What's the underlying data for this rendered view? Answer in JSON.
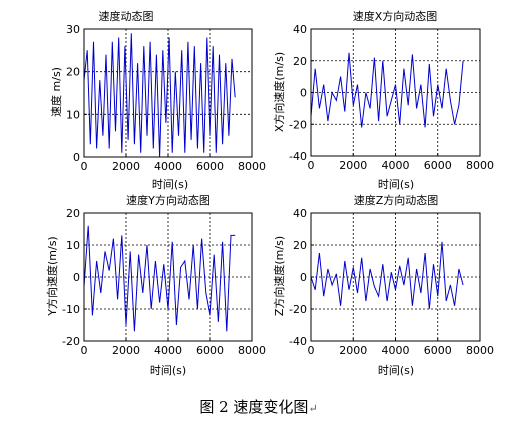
{
  "figure": {
    "caption": "图 2  速度变化图",
    "caption_mark": "↵"
  },
  "chart_data": [
    {
      "type": "line",
      "title": "速度动态图",
      "xlabel": "时间(s)",
      "ylabel": "速度 m/s)",
      "xlim": [
        0,
        8000
      ],
      "ylim": [
        0,
        30
      ],
      "xticks": [
        0,
        2000,
        4000,
        6000,
        8000
      ],
      "yticks": [
        0,
        10,
        20,
        30
      ],
      "grid": true,
      "color": "#0000cc",
      "series": [
        {
          "x": [
            0,
            150,
            300,
            450,
            600,
            750,
            900,
            1050,
            1200,
            1350,
            1500,
            1650,
            1800,
            1950,
            2100,
            2250,
            2400,
            2550,
            2700,
            2850,
            3000,
            3150,
            3300,
            3450,
            3600,
            3750,
            3900,
            4050,
            4200,
            4350,
            4500,
            4650,
            4800,
            4950,
            5100,
            5250,
            5400,
            5550,
            5700,
            5850,
            6000,
            6150,
            6300,
            6450,
            6600,
            6750,
            6900,
            7050,
            7200
          ],
          "values": [
            18,
            25,
            3,
            27,
            2,
            18,
            5,
            24,
            2,
            27,
            6,
            28,
            1,
            26,
            4,
            29,
            3,
            22,
            1,
            26,
            5,
            27,
            2,
            24,
            0,
            25,
            8,
            28,
            1,
            20,
            5,
            25,
            1,
            27,
            4,
            26,
            2,
            22,
            1,
            28,
            5,
            26,
            1,
            24,
            3,
            22,
            5,
            23,
            14
          ]
        }
      ]
    },
    {
      "type": "line",
      "title": "速度X方向动态图",
      "xlabel": "时间(s)",
      "ylabel": "X方向速度(m/s)",
      "xlim": [
        0,
        8000
      ],
      "ylim": [
        -40,
        40
      ],
      "xticks": [
        0,
        2000,
        4000,
        6000,
        8000
      ],
      "yticks": [
        -40,
        -20,
        0,
        20,
        40
      ],
      "grid": true,
      "color": "#0000cc",
      "series": [
        {
          "x": [
            0,
            200,
            400,
            600,
            800,
            1000,
            1200,
            1400,
            1600,
            1800,
            2000,
            2200,
            2400,
            2600,
            2800,
            3000,
            3200,
            3400,
            3600,
            3800,
            4000,
            4200,
            4400,
            4600,
            4800,
            5000,
            5200,
            5400,
            5600,
            5800,
            6000,
            6200,
            6400,
            6600,
            6800,
            7000,
            7200
          ],
          "values": [
            -15,
            15,
            -10,
            5,
            -18,
            0,
            -5,
            10,
            -12,
            25,
            -8,
            5,
            -22,
            0,
            -10,
            22,
            -18,
            20,
            -15,
            -5,
            5,
            -20,
            15,
            -8,
            24,
            -10,
            5,
            -22,
            18,
            -15,
            5,
            -10,
            15,
            -5,
            -20,
            -8,
            20
          ]
        }
      ]
    },
    {
      "type": "line",
      "title": "速度Y方向动态图",
      "xlabel": "时间(s)",
      "ylabel": "Y方向速度(m/s)",
      "xlim": [
        0,
        8000
      ],
      "ylim": [
        -20,
        20
      ],
      "xticks": [
        0,
        2000,
        4000,
        6000,
        8000
      ],
      "yticks": [
        -20,
        -10,
        0,
        10,
        20
      ],
      "grid": true,
      "color": "#0000cc",
      "series": [
        {
          "x": [
            0,
            200,
            400,
            600,
            800,
            1000,
            1200,
            1400,
            1600,
            1800,
            2000,
            2200,
            2400,
            2600,
            2800,
            3000,
            3200,
            3400,
            3600,
            3800,
            4000,
            4200,
            4400,
            4600,
            4800,
            5000,
            5200,
            5400,
            5600,
            5800,
            6000,
            6200,
            6400,
            6600,
            6800,
            7000,
            7200
          ],
          "values": [
            -3,
            16,
            -12,
            5,
            -5,
            8,
            2,
            12,
            -7,
            13,
            -15,
            8,
            -17,
            7,
            -5,
            10,
            -10,
            5,
            -8,
            4,
            -10,
            11,
            -15,
            3,
            5,
            -7,
            10,
            -10,
            12,
            -5,
            -12,
            7,
            -14,
            11,
            -17,
            13,
            13
          ]
        }
      ]
    },
    {
      "type": "line",
      "title": "速度Z方向动态图",
      "xlabel": "时间(s)",
      "ylabel": "Z方向速度(m/s)",
      "xlim": [
        0,
        8000
      ],
      "ylim": [
        -40,
        40
      ],
      "xticks": [
        0,
        2000,
        4000,
        6000,
        8000
      ],
      "yticks": [
        -40,
        -20,
        0,
        20,
        40
      ],
      "grid": true,
      "color": "#0000cc",
      "series": [
        {
          "x": [
            0,
            200,
            400,
            600,
            800,
            1000,
            1200,
            1400,
            1600,
            1800,
            2000,
            2200,
            2400,
            2600,
            2800,
            3000,
            3200,
            3400,
            3600,
            3800,
            4000,
            4200,
            4400,
            4600,
            4800,
            5000,
            5200,
            5400,
            5600,
            5800,
            6000,
            6200,
            6400,
            6600,
            6800,
            7000,
            7200
          ],
          "values": [
            0,
            -8,
            15,
            -12,
            5,
            -5,
            2,
            -18,
            10,
            -8,
            6,
            -10,
            12,
            -15,
            5,
            -6,
            -12,
            8,
            -15,
            3,
            -8,
            7,
            -5,
            12,
            -18,
            5,
            -10,
            15,
            -20,
            8,
            -12,
            22,
            -15,
            -5,
            -18,
            5,
            -5
          ]
        }
      ]
    }
  ]
}
